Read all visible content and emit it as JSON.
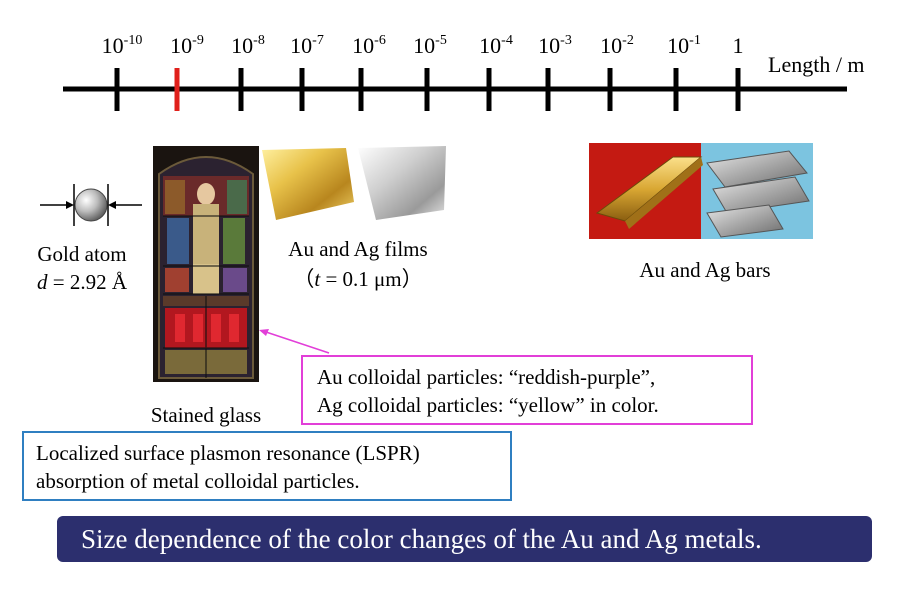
{
  "scale": {
    "axis_title": "Length / m",
    "ticks": [
      {
        "base": "10",
        "exp": "-10"
      },
      {
        "base": "10",
        "exp": "-9",
        "highlight": true
      },
      {
        "base": "10",
        "exp": "-8"
      },
      {
        "base": "10",
        "exp": "-7"
      },
      {
        "base": "10",
        "exp": "-6"
      },
      {
        "base": "10",
        "exp": "-5"
      },
      {
        "base": "10",
        "exp": "-4"
      },
      {
        "base": "10",
        "exp": "-3"
      },
      {
        "base": "10",
        "exp": "-2"
      },
      {
        "base": "10",
        "exp": "-1"
      },
      {
        "base": "1",
        "exp": ""
      }
    ],
    "highlight_color": "#e0201b"
  },
  "gold_atom": {
    "label": "Gold atom",
    "diameter_var": "d",
    "diameter_value": " = 2.92 Å"
  },
  "stained_glass": {
    "label": "Stained glass"
  },
  "films": {
    "label_line1": "Au and  Ag films",
    "label_line2_open": "（",
    "label_line2_var": "t",
    "label_line2_value": " = 0.1 μm",
    "label_line2_close": "）"
  },
  "bars": {
    "label": "Au and Ag bars"
  },
  "colloid_box": {
    "line1": "Au colloidal particles: “reddish-purple”,",
    "line2": "Ag colloidal particles: “yellow”  in color.",
    "border_color": "#e23fd8"
  },
  "lspr_box": {
    "line1": "Localized surface plasmon resonance (LSPR)",
    "line2": "absorption of metal colloidal particles.",
    "border_color": "#2f7fc1"
  },
  "banner": {
    "text": "Size dependence of the color changes of the Au and Ag metals.",
    "background": "#2c2f6e"
  }
}
